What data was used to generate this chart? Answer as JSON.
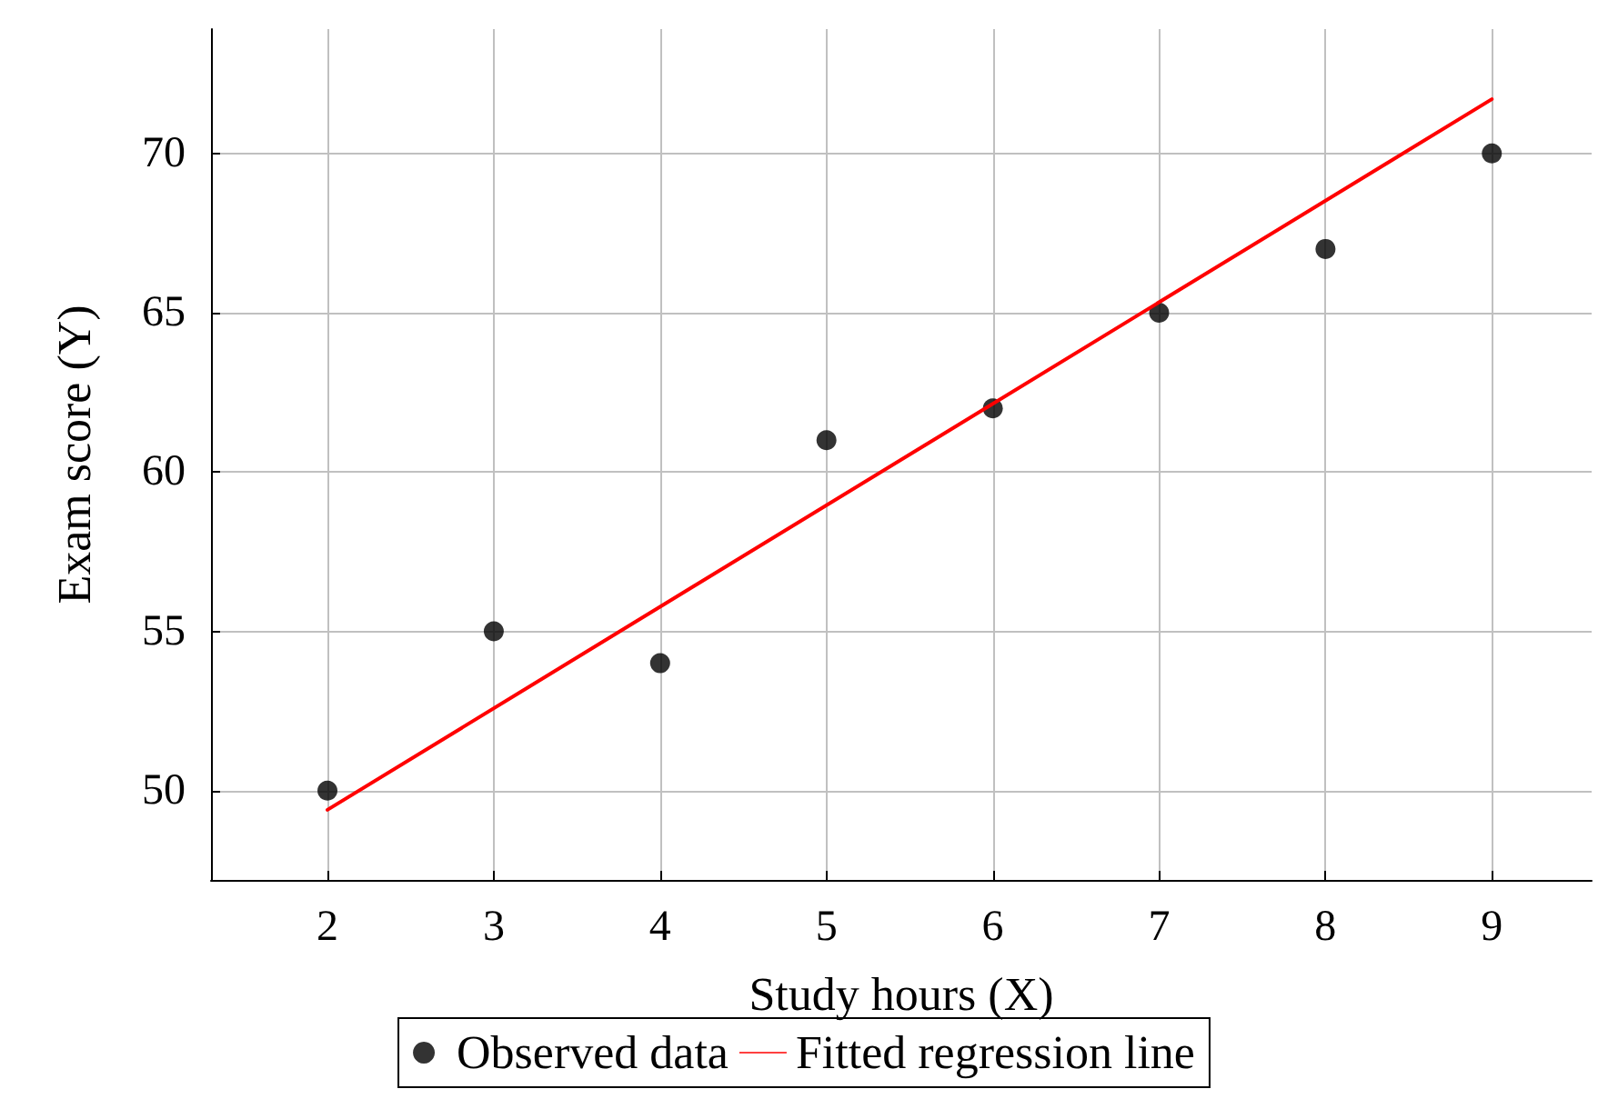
{
  "chart_data": {
    "type": "scatter",
    "xlabel": "Study hours (X)",
    "ylabel": "Exam score (Y)",
    "xlim": [
      1.3,
      9.6
    ],
    "ylim": [
      47.2,
      73.9
    ],
    "xticks": [
      2,
      3,
      4,
      5,
      6,
      7,
      8,
      9
    ],
    "yticks": [
      50,
      55,
      60,
      65,
      70
    ],
    "grid": true,
    "legend": "bottom",
    "series": [
      {
        "name": "Observed data",
        "color": "#000000",
        "marker": "circle",
        "x": [
          2,
          3,
          4,
          5,
          6,
          7,
          8,
          9
        ],
        "values": [
          50,
          55,
          54,
          61,
          62,
          65,
          67,
          70
        ]
      },
      {
        "name": "Fitted regression line",
        "type": "line",
        "color": "#ff0000",
        "marker": "none",
        "x": [
          2,
          9
        ],
        "values": [
          49.4,
          71.7
        ]
      }
    ]
  }
}
